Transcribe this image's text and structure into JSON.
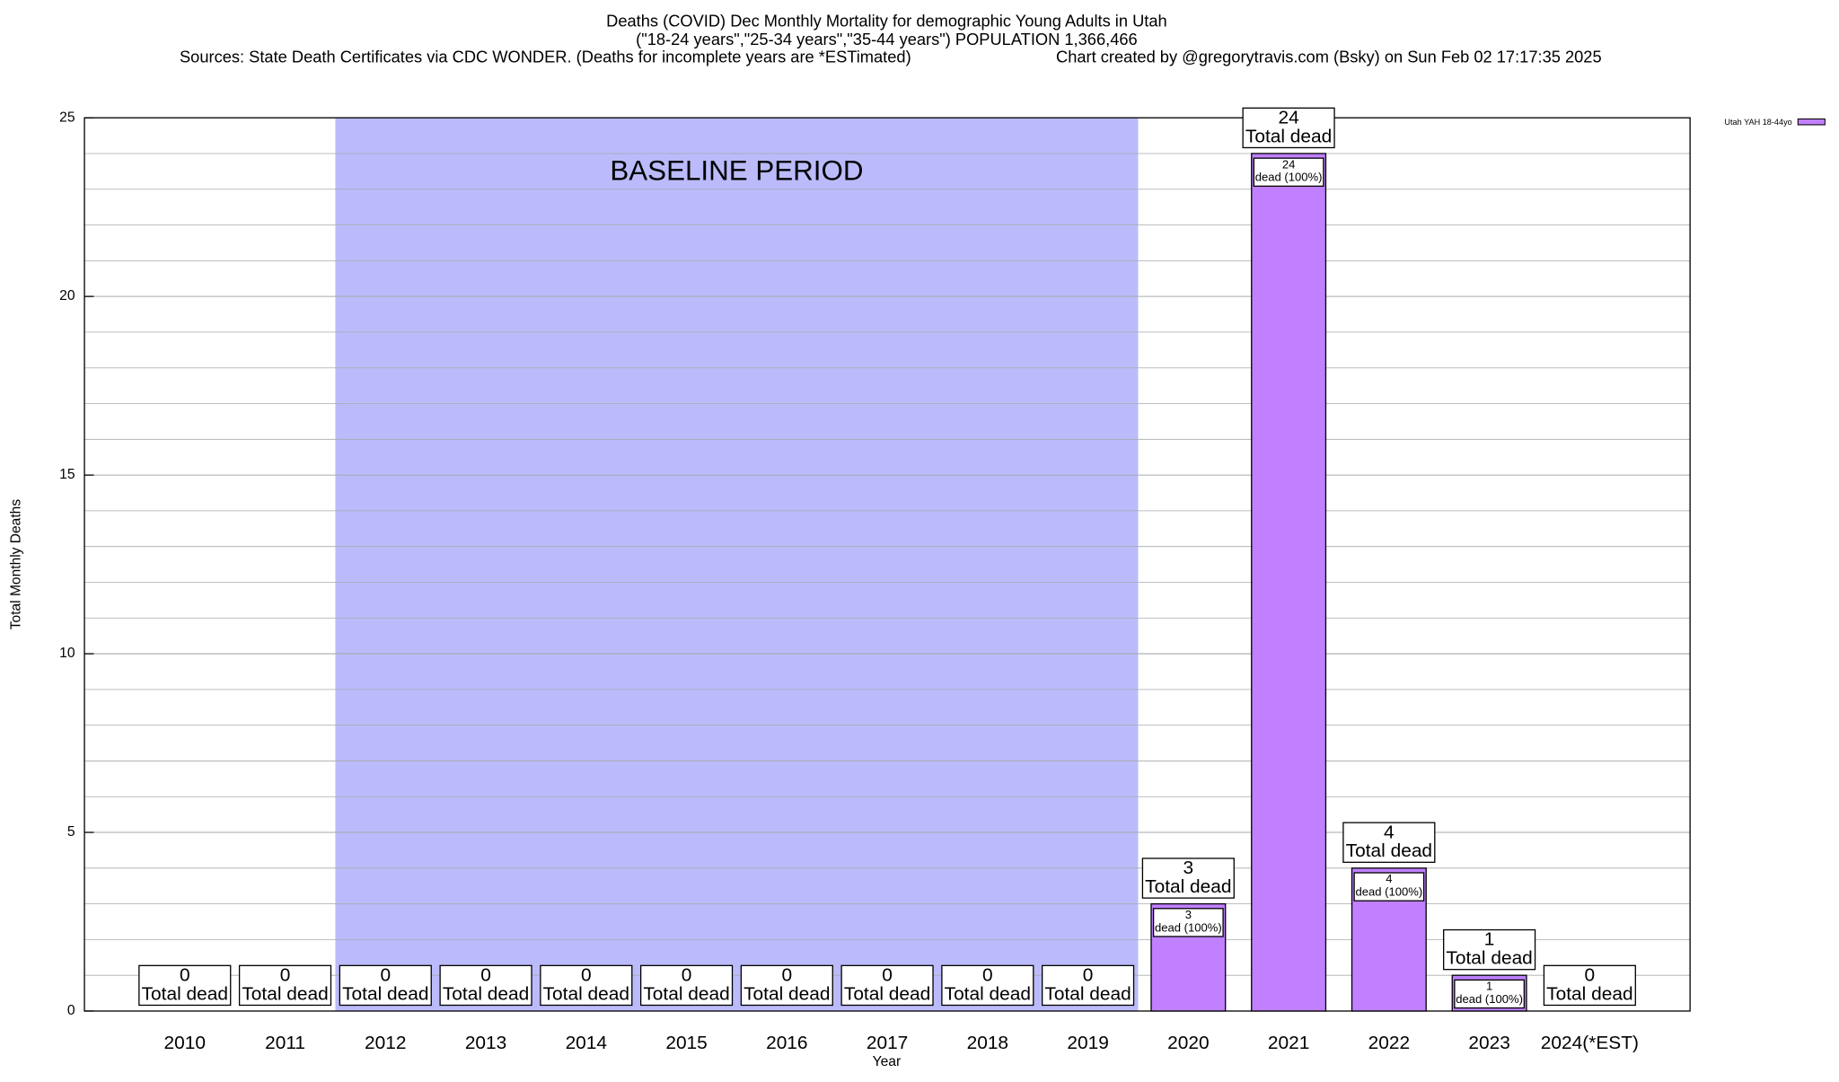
{
  "chart_data": {
    "type": "bar",
    "title": "Deaths (COVID) Dec Monthly Mortality for demographic Young Adults in Utah",
    "subtitle": "(\"18-24 years\",\"25-34 years\",\"35-44 years\") POPULATION 1,366,466",
    "sources": "Sources: State Death Certificates via CDC WONDER. (Deaths for incomplete years are *ESTimated)",
    "credit": "Chart created by @gregorytravis.com (Bsky) on Sun Feb 02 17:17:35 2025",
    "x_label": "Year",
    "y_label": "Total Monthly Deaths",
    "categories": [
      "2010",
      "2011",
      "2012",
      "2013",
      "2014",
      "2015",
      "2016",
      "2017",
      "2018",
      "2019",
      "2020",
      "2021",
      "2022",
      "2023",
      "2024(*EST)"
    ],
    "series": [
      {
        "name": "Utah YAH 18-44yo",
        "color": "#c080ff",
        "values": [
          0,
          0,
          0,
          0,
          0,
          0,
          0,
          0,
          0,
          0,
          3,
          24,
          4,
          1,
          0
        ]
      }
    ],
    "total_label": "Total dead",
    "inner_label": "dead (100%)",
    "baseline": {
      "label": "BASELINE PERIOD",
      "start": "2012",
      "end": "2019",
      "color": "#bbbbfc"
    },
    "ylim": [
      0,
      25
    ],
    "yticks": [
      0,
      5,
      10,
      15,
      20,
      25
    ],
    "minor_yticks": [
      1,
      2,
      3,
      4,
      6,
      7,
      8,
      9,
      11,
      12,
      13,
      14,
      16,
      17,
      18,
      19,
      21,
      22,
      23,
      24
    ],
    "grid": true,
    "legend": "top-right"
  }
}
